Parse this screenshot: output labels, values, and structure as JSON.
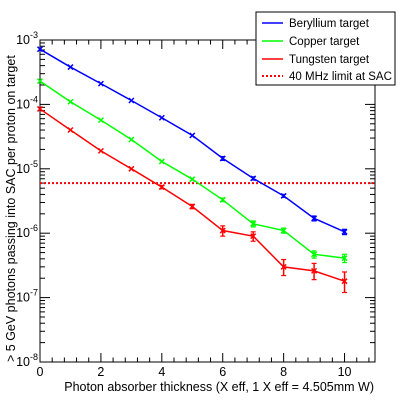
{
  "chart_data": {
    "type": "line",
    "title": "",
    "xlabel": "Photon absorber thickness (X eff, 1 X eff = 4.505mm W)",
    "ylabel": "> 5 GeV photons passing into SAC per proton on target",
    "xlim": [
      0,
      11
    ],
    "ylim": [
      1e-08,
      0.001
    ],
    "yscale": "log",
    "x_ticks": [
      {
        "value": 0,
        "label": "0"
      },
      {
        "value": 2,
        "label": "2"
      },
      {
        "value": 4,
        "label": "4"
      },
      {
        "value": 6,
        "label": "6"
      },
      {
        "value": 8,
        "label": "8"
      },
      {
        "value": 10,
        "label": "10"
      }
    ],
    "y_ticks": [
      {
        "exp": -3,
        "label_base": "10",
        "label_exp": "-3"
      },
      {
        "exp": -4,
        "label_base": "10",
        "label_exp": "-4"
      },
      {
        "exp": -5,
        "label_base": "10",
        "label_exp": "-5"
      },
      {
        "exp": -6,
        "label_base": "10",
        "label_exp": "-6"
      },
      {
        "exp": -7,
        "label_base": "10",
        "label_exp": "-7"
      },
      {
        "exp": -8,
        "label_base": "10",
        "label_exp": "-8"
      }
    ],
    "x": [
      0,
      1,
      2,
      3,
      4,
      5,
      6,
      7,
      8,
      9,
      10
    ],
    "series": [
      {
        "name": "Beryllium target",
        "color": "#0000ff",
        "values": [
          0.00072,
          0.00038,
          0.00021,
          0.000115,
          6.2e-05,
          3.3e-05,
          1.45e-05,
          7.1e-06,
          3.8e-06,
          1.7e-06,
          1.05e-06
        ],
        "err_up": [
          0,
          0,
          0,
          0,
          0,
          0,
          1e-06,
          4e-07,
          2e-07,
          1.5e-07,
          1e-07
        ],
        "err_down": [
          0,
          0,
          0,
          0,
          0,
          0,
          1e-06,
          4e-07,
          2e-07,
          1.5e-07,
          1e-07
        ]
      },
      {
        "name": "Copper target",
        "color": "#00ff00",
        "values": [
          0.00023,
          0.00011,
          5.7e-05,
          2.85e-05,
          1.3e-05,
          6.9e-06,
          3.3e-06,
          1.4e-06,
          1.1e-06,
          4.7e-07,
          4.1e-07
        ],
        "err_up": [
          0,
          0,
          0,
          0,
          0,
          0,
          2e-07,
          1.5e-07,
          1e-07,
          6e-08,
          6e-08
        ],
        "err_down": [
          0,
          0,
          0,
          0,
          0,
          0,
          2e-07,
          1.5e-07,
          1e-07,
          6e-08,
          6e-08
        ]
      },
      {
        "name": "Tungsten target",
        "color": "#ff0000",
        "values": [
          8.5e-05,
          4e-05,
          1.9e-05,
          1e-05,
          5.2e-06,
          2.6e-06,
          1.1e-06,
          9e-07,
          3e-07,
          2.6e-07,
          1.8e-07
        ],
        "err_up": [
          0,
          0,
          0,
          0,
          3e-07,
          2e-07,
          2e-07,
          1.5e-07,
          9e-08,
          8e-08,
          7e-08
        ],
        "err_down": [
          0,
          0,
          0,
          0,
          3e-07,
          2e-07,
          2e-07,
          1.5e-07,
          8e-08,
          7e-08,
          6e-08
        ]
      }
    ],
    "reference_lines": [
      {
        "name": "40 MHz limit at SAC",
        "color": "#ff0000",
        "style": "dotted",
        "y": 6e-06
      }
    ],
    "legend": {
      "placement": "top-right",
      "entries": [
        {
          "label": "Beryllium target",
          "color": "#0000ff",
          "style": "solid"
        },
        {
          "label": "Copper target",
          "color": "#00ff00",
          "style": "solid"
        },
        {
          "label": "Tungsten target",
          "color": "#ff0000",
          "style": "solid"
        },
        {
          "label": "40 MHz limit at SAC",
          "color": "#ff0000",
          "style": "dotted"
        }
      ]
    },
    "grid": false
  }
}
